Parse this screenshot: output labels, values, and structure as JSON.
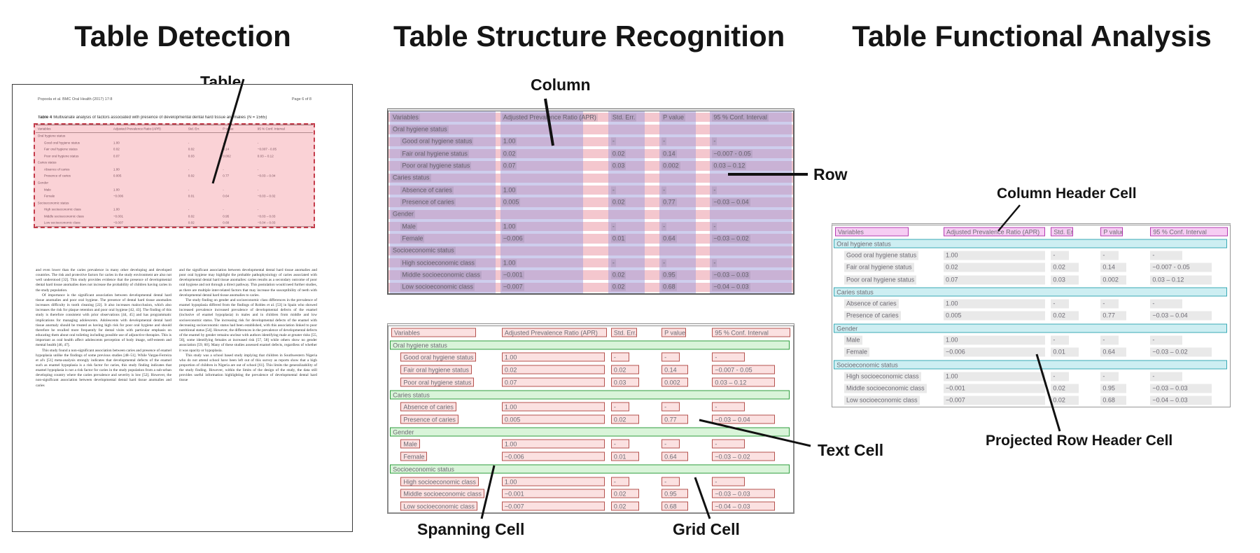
{
  "figure": {
    "panel1_title": "Table Detection",
    "panel2_title": "Table Structure Recognition",
    "panel3_title": "Table Functional Analysis"
  },
  "callouts": {
    "table": "Table",
    "column": "Column",
    "row": "Row",
    "text_cell": "Text Cell",
    "spanning_cell": "Spanning Cell",
    "grid_cell": "Grid Cell",
    "column_header_cell": "Column Header Cell",
    "projected_row_header_cell": "Projected Row Header Cell"
  },
  "document": {
    "header_left": "Popoola et al. BMC Oral Health  (2017) 17:8",
    "header_right": "Page 6 of 8",
    "caption_label": "Table 4",
    "caption_text": "Multivariate analysis of factors associated with presence of developmental dental hard tissue anomalies (N = 1565)",
    "body_left_paragraphs": [
      "and even lower than the caries prevalence in many other developing and developed countries. The risk and protective factors for caries in the study environment are also not well understood [32]. This study provides evidence that the presence of developmental dental hard tissue anomalies does not increase the probability of children having caries in the study population.",
      "Of importance is the significant association between developmental dental hard tissue anomalies and poor oral hygiene. The presence of dental hard tissue anomalies increases difficulty in tooth cleaning [22]. It also increases malocclusion, which also increases the risk for plaque retention and poor oral hygiene [42, 43]. The finding of this study is therefore consistent with prior observations [44, 45] and has programmatic implications for managing adolescents. Adolescents with developmental dental hard tissue anomaly should be treated as having high risk for poor oral hygiene and should therefore be recalled more frequently for dental visits with particular emphasis on educating them about oral toileting including possible use of adjunctive therapies. This is important as oral health affect adolescents perception of body image, self-esteem and mental health [46, 47].",
      "This study found a non-significant association between caries and presence of enamel hypoplasia unlike the findings of some previous studies [48–51]. While Vargas-Ferreira et al's [51] meta-analysis strongly indicates that developmental defects of the enamel such as enamel hypoplasia is a risk factor for caries, this study finding indicates that enamel hypoplasia is not a risk factor for caries in the study population from a sub-urban developing country where the caries prevalence and severity is low [52]. However, the non-significant association between developmental dental hard tissue anomalies and caries"
    ],
    "body_right_paragraphs": [
      "and the significant association between developmental dental hard tissue anomalies and poor oral hygiene may highlight the probable pathophysiology of caries associated with developmental dental hard tissue anomalies: caries results as a secondary outcome of poor oral hygiene and not through a direct pathway. This postulation would need further studies, as there are multiple inter-related factors that may increase the susceptibility of teeth with developmental dental hard tissue anomalies to caries.",
      "The study finding on gender and socioeconomic class differences in the prevalence of enamel hypoplasia differed from the findings of Robles et al. [53] in Spain who showed increased prevalence increased prevalence of developmental defects of the enamel (inclusive of enamel hypoplasia) in males and in children from middle and low socioeconomic status. The increasing risk for developmental defects of the enamel with decreasing socioeconomic status had been established, with this association linked to poor nutritional status [54]. However, the differences in the prevalence of developmental defects of the enamel by gender remains unclear with authors identifying male at greater risks [55, 56], some identifying females at increased risk [57, 58] while others show no gender association [59, 60]. Many of these studies assessed enamel defects, regardless of whether it was opacity or hypoplasia.",
      "This study was a school based study implying that children in Southwestern Nigeria who do not attend school have been left out of this survey as reports show that a high proportion of children in Nigeria are out of school [61]. This limits the generalizability of the study finding. However, within the limits of the design of the study, the data still provides useful information highlighting the prevalence of developmental dental hard tissue"
    ]
  },
  "table": {
    "headers": [
      "Variables",
      "Adjusted Prevalence Ratio (APR)",
      "Std. Err.",
      "P value",
      "95 % Conf. Interval"
    ],
    "rows": [
      {
        "span": "Oral hygiene status"
      },
      {
        "cells": [
          "Good oral hygiene status",
          "1.00",
          "-",
          "-",
          "-"
        ]
      },
      {
        "cells": [
          "Fair oral hygiene status",
          "0.02",
          "0.02",
          "0.14",
          "−0.007 - 0.05"
        ]
      },
      {
        "cells": [
          "Poor oral hygiene status",
          "0.07",
          "0.03",
          "0.002",
          "0.03 – 0.12"
        ]
      },
      {
        "span": "Caries status"
      },
      {
        "cells": [
          "Absence of caries",
          "1.00",
          "-",
          "-",
          "-"
        ]
      },
      {
        "cells": [
          "Presence of caries",
          "0.005",
          "0.02",
          "0.77",
          "−0.03 – 0.04"
        ]
      },
      {
        "span": "Gender"
      },
      {
        "cells": [
          "Male",
          "1.00",
          "-",
          "-",
          "-"
        ]
      },
      {
        "cells": [
          "Female",
          "−0.006",
          "0.01",
          "0.64",
          "−0.03 – 0.02"
        ]
      },
      {
        "span": "Socioeconomic status"
      },
      {
        "cells": [
          "High socioeconomic class",
          "1.00",
          "-",
          "-",
          "-"
        ]
      },
      {
        "cells": [
          "Middle socioeconomic class",
          "−0.001",
          "0.02",
          "0.95",
          "−0.03 – 0.03"
        ]
      },
      {
        "cells": [
          "Low socioeconomic class",
          "−0.007",
          "0.02",
          "0.68",
          "−0.04 – 0.03"
        ]
      }
    ]
  },
  "colors": {
    "detfill": "rgba(240,105,118,0.30)",
    "detborder": "#c43b4a",
    "rowband": "#f4c7ce",
    "colband": "rgba(157,157,219,0.50)",
    "cellfill": "#fbe1e1",
    "cellborder": "#b5524e",
    "spanfill": "#d9f4d9",
    "spanborder": "#2f9e3e",
    "hdrfill": "#f6cdf3",
    "hdrborder": "#b43cb0",
    "projfill": "#cdeef2",
    "projborder": "#39a9b5",
    "graycell": "#e9e9e9"
  }
}
